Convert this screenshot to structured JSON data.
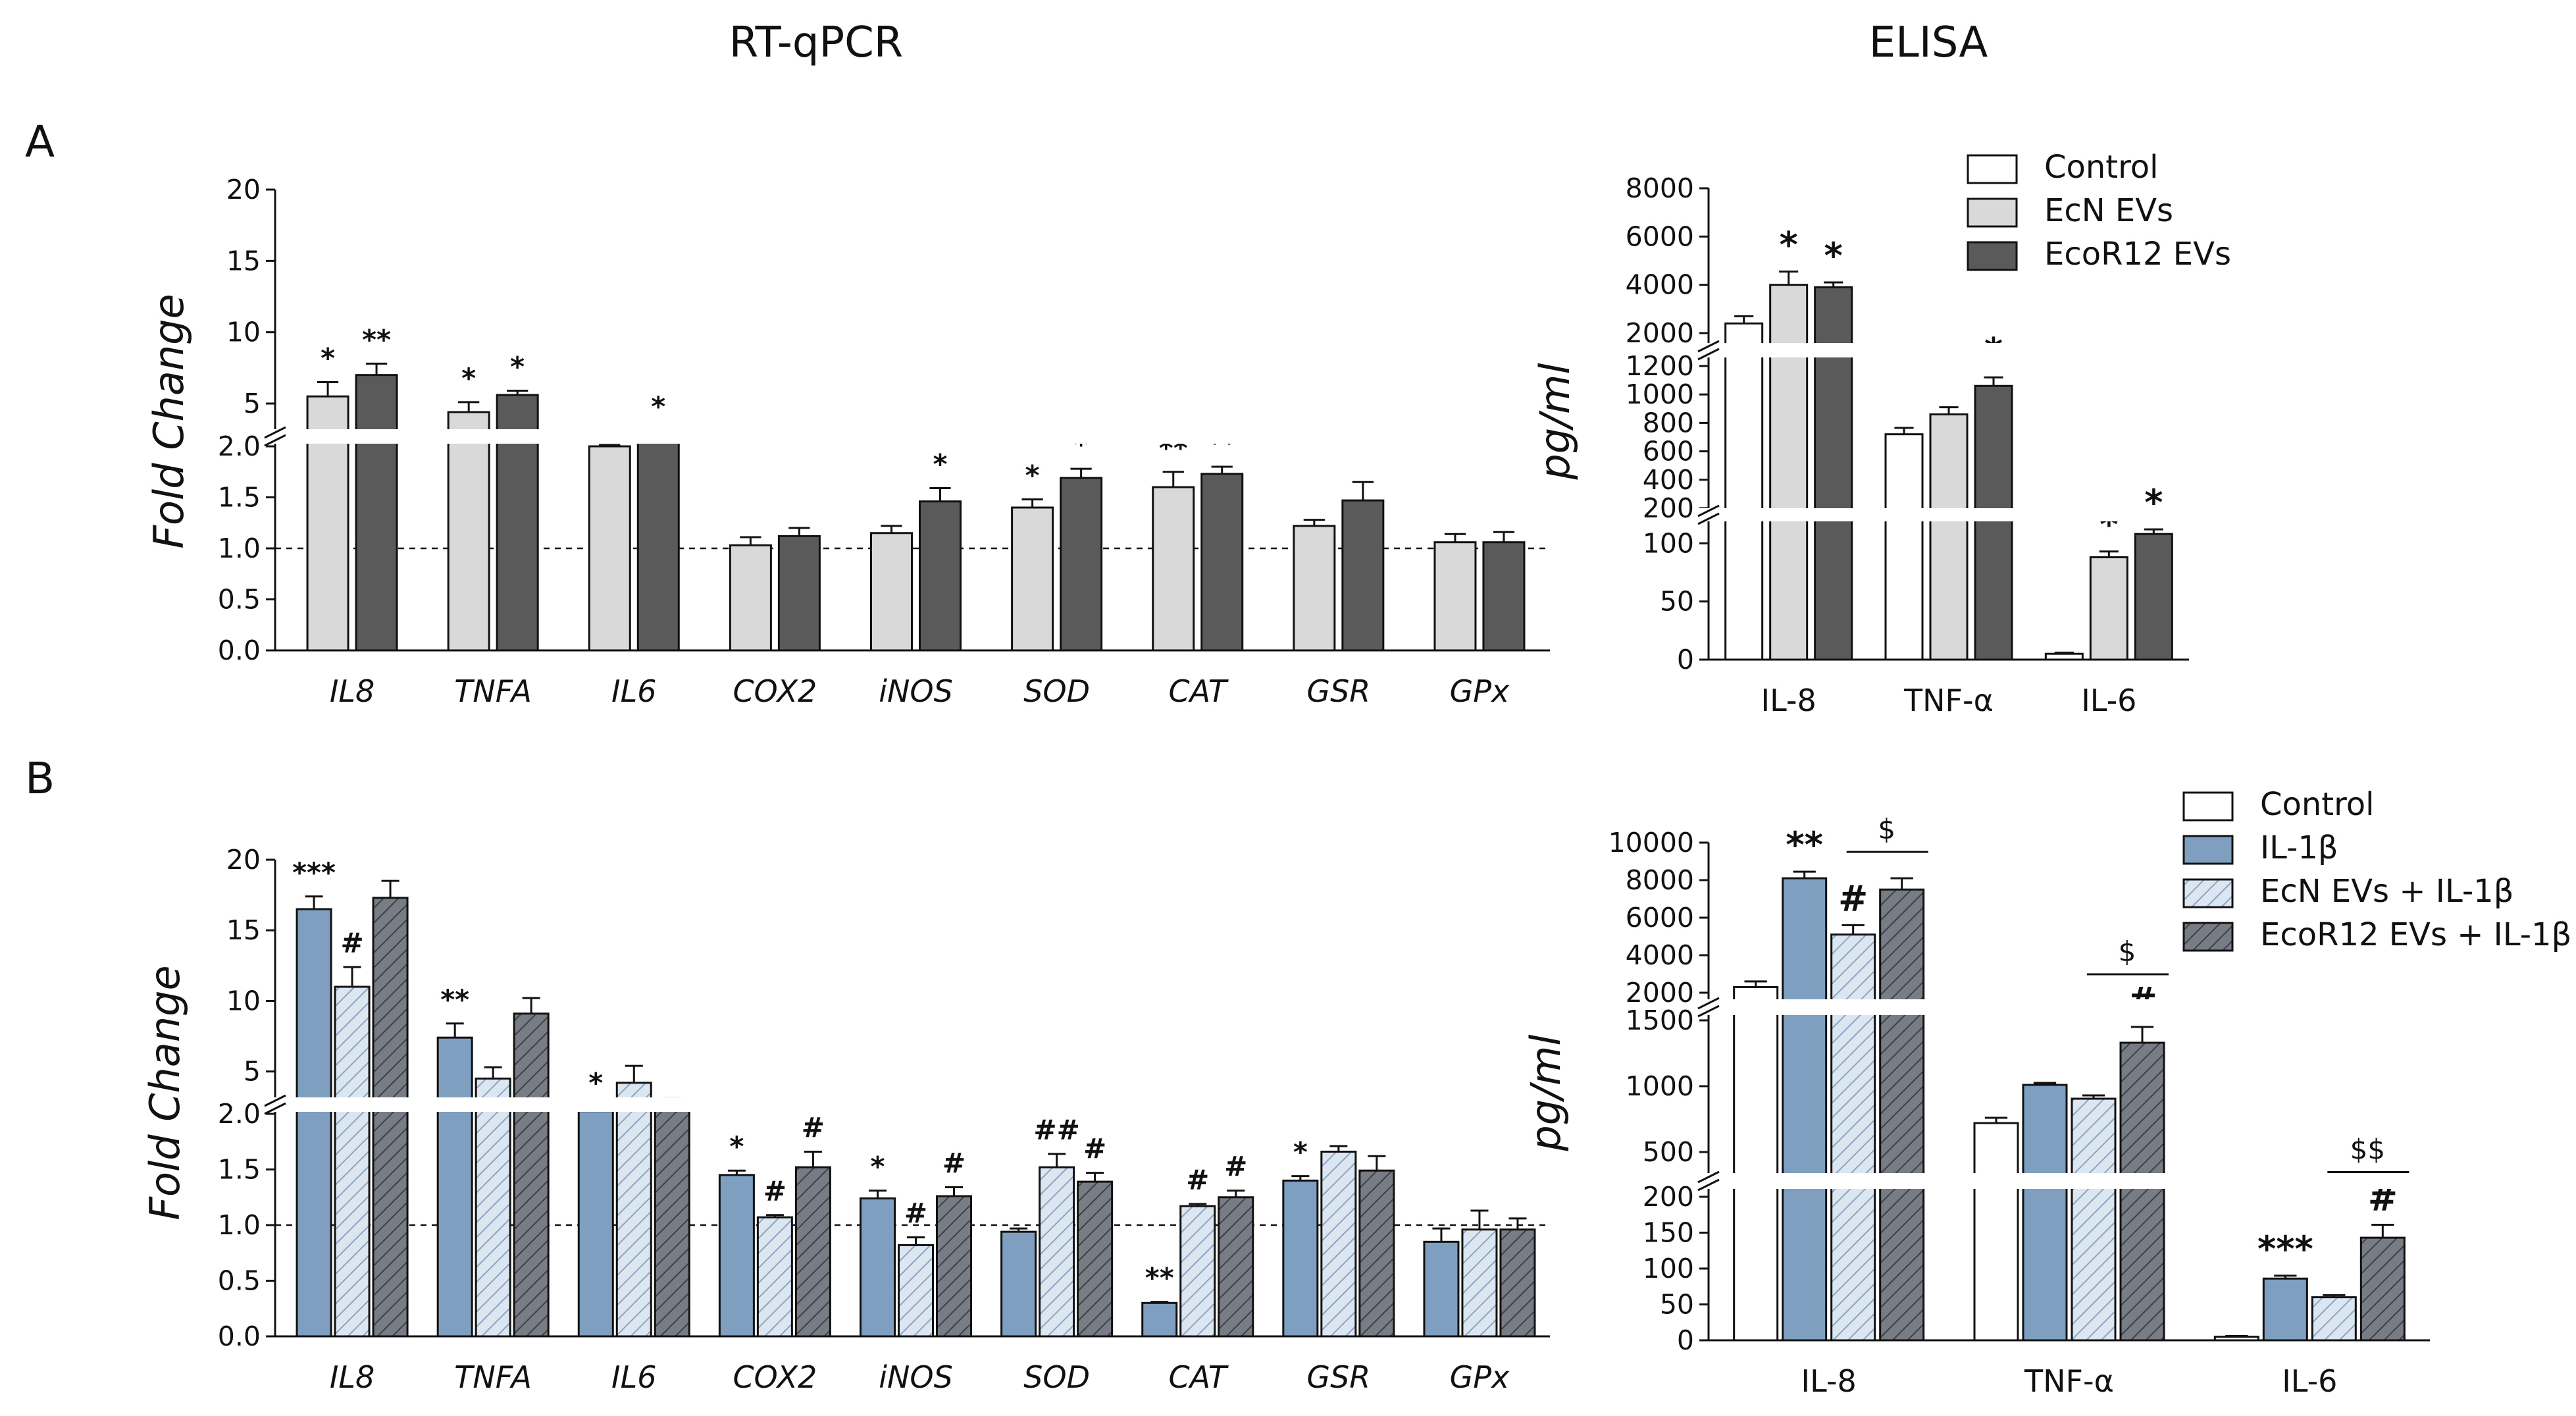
{
  "headers": {
    "left": "RT-qPCR",
    "right": "ELISA"
  },
  "panels": {
    "a": "A",
    "b": "B"
  },
  "colors": {
    "control": "#ffffff",
    "ecn_gray": "#d9d9d9",
    "ecor_gray": "#5a5a5a",
    "il1b_blue": "#7f9fc0",
    "ecn_hatch_bg": "#dce6f1",
    "ecn_hatch_line": "#8aa5c4",
    "ecor_hatch_bg": "#787c84",
    "ecor_hatch_line": "#3c4048",
    "axis": "#111111"
  },
  "chart_data": [
    {
      "id": "A-qpcr",
      "type": "bar",
      "title": "RT-qPCR",
      "ylabel": "Fold Change",
      "xlabel": "",
      "reference_line": 1.0,
      "y_axis_break": {
        "lower": [
          0,
          2.0
        ],
        "upper": [
          2.0,
          20
        ]
      },
      "yticks_lower": [
        "0.0",
        "0.5",
        "1.0",
        "1.5",
        "2.0"
      ],
      "yticks_upper": [
        "5",
        "10",
        "15",
        "20"
      ],
      "categories": [
        "IL8",
        "TNFA",
        "IL6",
        "COX2",
        "iNOS",
        "SOD",
        "CAT",
        "GSR",
        "GPx"
      ],
      "series": [
        {
          "name": "EcN EVs",
          "style": "ecn",
          "values": [
            5.5,
            4.4,
            2.0,
            1.03,
            1.15,
            1.4,
            1.6,
            1.22,
            1.06
          ],
          "errors": [
            1.0,
            0.7,
            0.1,
            0.08,
            0.07,
            0.08,
            0.15,
            0.06,
            0.08
          ],
          "sig": [
            "*",
            "*",
            "",
            "",
            "",
            "*",
            "**",
            "",
            ""
          ]
        },
        {
          "name": "EcoR12 EVs",
          "style": "ecor",
          "values": [
            7.0,
            5.6,
            2.5,
            1.12,
            1.46,
            1.69,
            1.73,
            1.47,
            1.06
          ],
          "errors": [
            0.8,
            0.3,
            0.6,
            0.08,
            0.13,
            0.09,
            0.07,
            0.18,
            0.1
          ],
          "sig": [
            "**",
            "*",
            "*",
            "",
            "*",
            "*",
            "**",
            "",
            ""
          ]
        }
      ]
    },
    {
      "id": "A-elisa",
      "type": "bar",
      "title": "ELISA",
      "ylabel": "pg/ml",
      "xlabel": "",
      "y_axis_breaks": [
        [
          0,
          120
        ],
        [
          200,
          1200
        ],
        [
          2000,
          8000
        ]
      ],
      "yticks_1": [
        "0",
        "50",
        "100"
      ],
      "yticks_2": [
        "200",
        "400",
        "600",
        "800",
        "1000",
        "1200"
      ],
      "yticks_3": [
        "2000",
        "4000",
        "6000",
        "8000"
      ],
      "categories": [
        "IL-8",
        "TNF-α",
        "IL-6"
      ],
      "series": [
        {
          "name": "Control",
          "style": "control",
          "values": [
            2400,
            720,
            5
          ],
          "errors": [
            300,
            45,
            1
          ],
          "sig": [
            "",
            "",
            ""
          ]
        },
        {
          "name": "EcN EVs",
          "style": "ecn",
          "values": [
            4000,
            860,
            88
          ],
          "errors": [
            550,
            50,
            5
          ],
          "sig": [
            "*",
            "",
            "*"
          ]
        },
        {
          "name": "EcoR12 EVs",
          "style": "ecor",
          "values": [
            3900,
            1060,
            108
          ],
          "errors": [
            200,
            60,
            4
          ],
          "sig": [
            "*",
            "*",
            "*"
          ]
        }
      ]
    },
    {
      "id": "B-qpcr",
      "type": "bar",
      "title": "",
      "ylabel": "Fold Change",
      "xlabel": "",
      "reference_line": 1.0,
      "y_axis_break": {
        "lower": [
          0,
          2.0
        ],
        "upper": [
          2.0,
          20
        ]
      },
      "yticks_lower": [
        "0.0",
        "0.5",
        "1.0",
        "1.5",
        "2.0"
      ],
      "yticks_upper": [
        "5",
        "10",
        "15",
        "20"
      ],
      "categories": [
        "IL8",
        "TNFA",
        "IL6",
        "COX2",
        "iNOS",
        "SOD",
        "CAT",
        "GSR",
        "GPx"
      ],
      "series": [
        {
          "name": "IL-1β",
          "style": "il1b",
          "values": [
            16.5,
            7.4,
            2.2,
            1.45,
            1.24,
            0.94,
            0.3,
            1.4,
            0.85
          ],
          "errors": [
            0.9,
            1.0,
            0.3,
            0.04,
            0.07,
            0.03,
            0.01,
            0.04,
            0.12
          ],
          "sig": [
            "***",
            "**",
            "*",
            "*",
            "*",
            "",
            "**",
            "*",
            ""
          ]
        },
        {
          "name": "EcN EVs + IL-1β",
          "style": "ecn_hatch",
          "values": [
            11.0,
            4.5,
            4.2,
            1.07,
            0.82,
            1.52,
            1.17,
            1.66,
            0.96
          ],
          "errors": [
            1.4,
            0.8,
            1.2,
            0.02,
            0.07,
            0.12,
            0.02,
            0.05,
            0.17
          ],
          "sig": [
            "#",
            "",
            "",
            "#",
            "#",
            "##",
            "#",
            "",
            ""
          ]
        },
        {
          "name": "EcoR12 EVs + IL-1β",
          "style": "ecor_hatch",
          "values": [
            17.3,
            9.1,
            2.7,
            1.52,
            1.26,
            1.39,
            1.25,
            1.49,
            0.96
          ],
          "errors": [
            1.2,
            1.1,
            0.4,
            0.14,
            0.08,
            0.08,
            0.06,
            0.13,
            0.1
          ],
          "sig": [
            "",
            "",
            "",
            "#",
            "#",
            "#",
            "#",
            "",
            ""
          ]
        }
      ]
    },
    {
      "id": "B-elisa",
      "type": "bar",
      "title": "",
      "ylabel": "pg/ml",
      "xlabel": "",
      "y_axis_breaks": [
        [
          0,
          200
        ],
        [
          400,
          1500
        ],
        [
          2000,
          10000
        ]
      ],
      "yticks_1": [
        "0",
        "50",
        "100",
        "150",
        "200"
      ],
      "yticks_2": [
        "500",
        "1000",
        "1500"
      ],
      "yticks_3": [
        "2000",
        "4000",
        "6000",
        "8000",
        "10000"
      ],
      "categories": [
        "IL-8",
        "TNF-α",
        "IL-6"
      ],
      "series": [
        {
          "name": "Control",
          "style": "control",
          "values": [
            2300,
            720,
            5
          ],
          "errors": [
            300,
            40,
            1
          ],
          "sig": [
            "",
            "",
            ""
          ]
        },
        {
          "name": "IL-1β",
          "style": "il1b",
          "values": [
            8100,
            1010,
            86
          ],
          "errors": [
            350,
            15,
            4
          ],
          "sig": [
            "**",
            "",
            "***"
          ]
        },
        {
          "name": "EcN EVs + IL-1β",
          "style": "ecn_hatch",
          "values": [
            5100,
            905,
            60
          ],
          "errors": [
            500,
            25,
            3
          ],
          "sig": [
            "#",
            "",
            ""
          ]
        },
        {
          "name": "EcoR12 EVs + IL-1β",
          "style": "ecor_hatch",
          "values": [
            7500,
            1330,
            143
          ],
          "errors": [
            600,
            120,
            18
          ],
          "sig": [
            "",
            "#",
            "#"
          ]
        }
      ],
      "comparisons": [
        "$",
        "$",
        "$$"
      ]
    }
  ]
}
